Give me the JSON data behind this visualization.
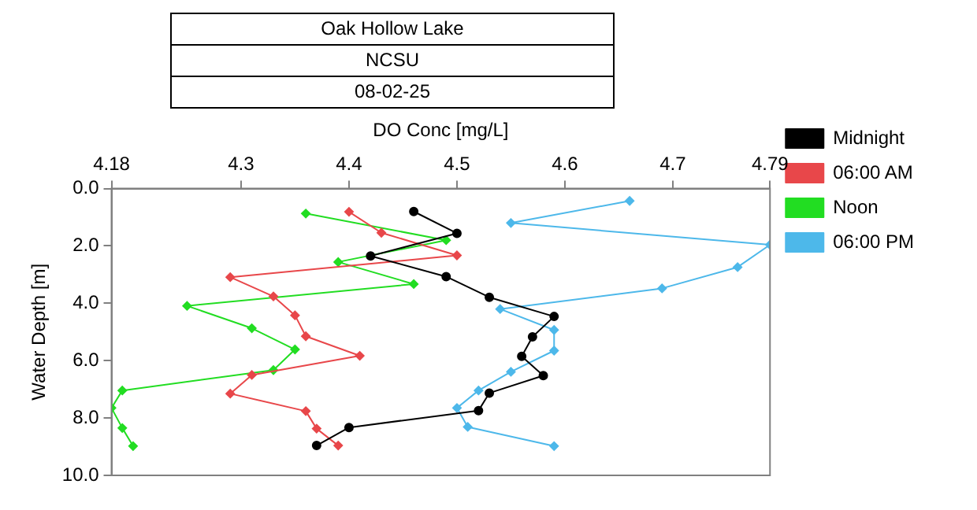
{
  "chart_data": {
    "type": "line",
    "title": "Oak Hollow Lake",
    "subtitle": "NCSU",
    "annotations": [
      "08-02-25"
    ],
    "xlabel": "DO Conc [mg/L]",
    "ylabel": "Water Depth [m]",
    "xlim": [
      4.18,
      4.79
    ],
    "xticks": [
      4.18,
      4.3,
      4.4,
      4.5,
      4.6,
      4.7,
      4.79
    ],
    "ylim": [
      10,
      0
    ],
    "yticks": [
      {
        "value": 0,
        "label": "0.0"
      },
      {
        "value": 2,
        "label": "2.0"
      },
      {
        "value": 4,
        "label": "4.0"
      },
      {
        "value": 6,
        "label": "6.0"
      },
      {
        "value": 8,
        "label": "8.0"
      },
      {
        "value": 10,
        "label": "10.0"
      }
    ],
    "grid": false,
    "legend": "top right",
    "line_style": "solid",
    "series": [
      {
        "name": "Midnight",
        "color": "#000000",
        "marker": "circle",
        "x": [
          4.46,
          4.5,
          4.42,
          4.49,
          4.53,
          4.59,
          4.57,
          4.56,
          4.58,
          4.53,
          4.52,
          4.4,
          4.37
        ],
        "values": [
          0.8,
          1.56,
          2.35,
          3.07,
          3.79,
          4.46,
          5.17,
          5.85,
          6.52,
          7.13,
          7.74,
          8.33,
          8.96
        ]
      },
      {
        "name": "06:00 AM",
        "color": "#e8474a",
        "marker": "diamond",
        "x": [
          4.4,
          4.43,
          4.5,
          4.29,
          4.33,
          4.35,
          4.36,
          4.41,
          4.31,
          4.29,
          4.36,
          4.37,
          4.39
        ],
        "values": [
          0.81,
          1.54,
          2.33,
          3.09,
          3.76,
          4.42,
          5.15,
          5.83,
          6.5,
          7.15,
          7.76,
          8.37,
          8.96
        ]
      },
      {
        "name": "Noon",
        "color": "#22dd22",
        "marker": "diamond",
        "x": [
          4.36,
          4.49,
          4.39,
          4.46,
          4.25,
          4.31,
          4.35,
          4.33,
          4.19,
          4.18,
          4.19,
          4.2
        ],
        "values": [
          0.87,
          1.8,
          2.56,
          3.33,
          4.09,
          4.87,
          5.61,
          6.33,
          7.04,
          7.65,
          8.35,
          8.98
        ]
      },
      {
        "name": "06:00 PM",
        "color": "#4db8ea",
        "marker": "diamond",
        "x": [
          4.66,
          4.55,
          4.79,
          4.76,
          4.69,
          4.54,
          4.59,
          4.59,
          4.55,
          4.52,
          4.5,
          4.51,
          4.59
        ],
        "values": [
          0.43,
          1.2,
          1.96,
          2.74,
          3.48,
          4.2,
          4.93,
          5.65,
          6.39,
          7.04,
          7.65,
          8.31,
          8.98
        ]
      }
    ]
  }
}
